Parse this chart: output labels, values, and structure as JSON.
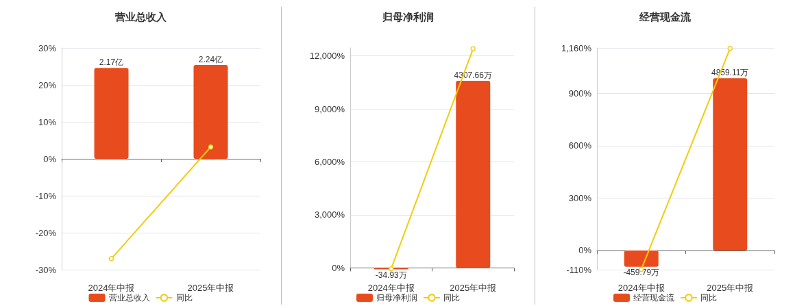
{
  "chart_data": [
    {
      "type": "bar",
      "title": "营业总收入",
      "categories": [
        "2024年中报",
        "2025年中报"
      ],
      "series": [
        {
          "name": "营业总收入",
          "axis": "y2",
          "color": "#e84c1e",
          "values": [
            2.17,
            2.24
          ],
          "value_labels": [
            "2.17亿",
            "2.24亿"
          ]
        },
        {
          "name": "同比",
          "type": "line",
          "axis": "y",
          "color": "#f2cc0c",
          "values": [
            -27,
            3.2
          ]
        }
      ],
      "ylim": [
        -30,
        30
      ],
      "yticks": [
        {
          "value": -30,
          "label": "-30%"
        },
        {
          "value": -20,
          "label": "-20%"
        },
        {
          "value": -10,
          "label": "-10%"
        },
        {
          "value": 0,
          "label": "0%"
        },
        {
          "value": 10,
          "label": "10%"
        },
        {
          "value": 20,
          "label": "20%"
        },
        {
          "value": 30,
          "label": "30%"
        }
      ],
      "y2lim": [
        -2.65,
        2.65
      ],
      "grid": "y",
      "legend": "bottom",
      "marker": "circle"
    },
    {
      "type": "bar",
      "title": "归母净利润",
      "categories": [
        "2024年中报",
        "2025年中报"
      ],
      "series": [
        {
          "name": "归母净利润",
          "axis": "y2",
          "color": "#e84c1e",
          "values": [
            -34.93,
            4307.66
          ],
          "value_labels": [
            "-34.93万",
            "4307.66万"
          ]
        },
        {
          "name": "同比",
          "type": "line",
          "axis": "y",
          "color": "#f2cc0c",
          "values": [
            -50,
            12400
          ]
        }
      ],
      "ylim": [
        -100,
        12450
      ],
      "yticks": [
        {
          "value": 0,
          "label": "0%"
        },
        {
          "value": 3000,
          "label": "3,000%"
        },
        {
          "value": 6000,
          "label": "6,000%"
        },
        {
          "value": 9000,
          "label": "9,000%"
        },
        {
          "value": 12000,
          "label": "12,000%"
        }
      ],
      "y2lim": [
        -41,
        5064
      ],
      "grid": "y",
      "legend": "bottom",
      "marker": "circle"
    },
    {
      "type": "bar",
      "title": "经营现金流",
      "categories": [
        "2024年中报",
        "2025年中报"
      ],
      "series": [
        {
          "name": "经营现金流",
          "axis": "y2",
          "color": "#e84c1e",
          "values": [
            -459.79,
            4859.11
          ],
          "value_labels": [
            "-459.79万",
            "4859.11万"
          ]
        },
        {
          "name": "同比",
          "type": "line",
          "axis": "y",
          "color": "#f2cc0c",
          "values": [
            -108,
            1157
          ]
        }
      ],
      "ylim": [
        -110,
        1160
      ],
      "yticks": [
        {
          "value": -110,
          "label": "-110%"
        },
        {
          "value": 0,
          "label": "0%"
        },
        {
          "value": 300,
          "label": "300%"
        },
        {
          "value": 600,
          "label": "600%"
        },
        {
          "value": 900,
          "label": "900%"
        },
        {
          "value": 1160,
          "label": "1,160%"
        }
      ],
      "y2lim": [
        -541.5,
        5711
      ],
      "grid": "y",
      "legend": "bottom",
      "marker": "circle"
    }
  ]
}
